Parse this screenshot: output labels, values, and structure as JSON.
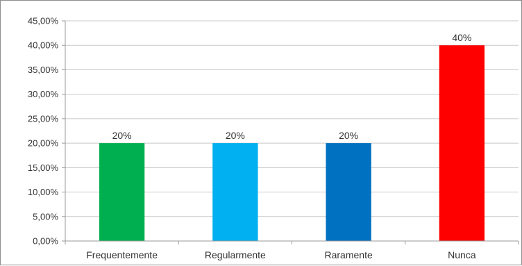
{
  "chart_data": {
    "type": "bar",
    "categories": [
      "Frequentemente",
      "Regularmente",
      "Raramente",
      "Nunca"
    ],
    "values": [
      20,
      20,
      20,
      40
    ],
    "data_labels": [
      "20%",
      "20%",
      "20%",
      "40%"
    ],
    "colors": [
      "#00b050",
      "#00b0f0",
      "#0070c0",
      "#ff0000"
    ],
    "ylim": [
      0,
      45
    ],
    "ytick_values": [
      0,
      5,
      10,
      15,
      20,
      25,
      30,
      35,
      40,
      45
    ],
    "ytick_labels": [
      "0,00%",
      "5,00%",
      "10,00%",
      "15,00%",
      "20,00%",
      "25,00%",
      "30,00%",
      "35,00%",
      "40,00%",
      "45,00%"
    ],
    "grid": true,
    "legend": "none",
    "title": "",
    "xlabel": "",
    "ylabel": ""
  }
}
